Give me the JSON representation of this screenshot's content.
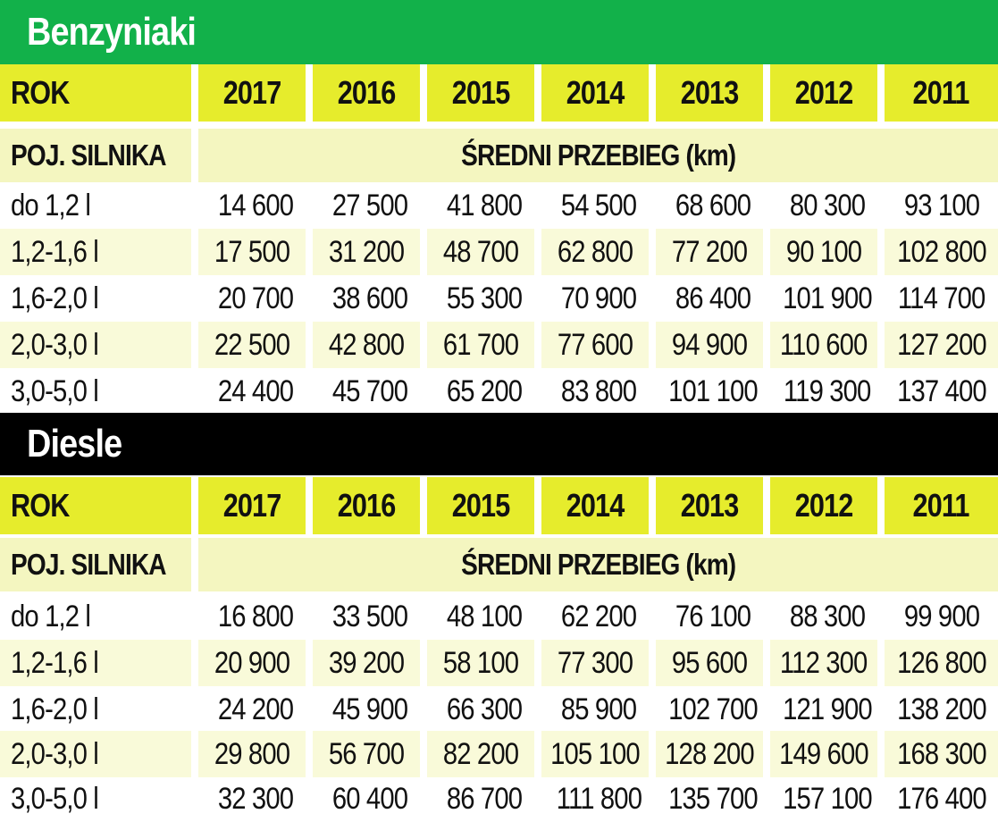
{
  "colors": {
    "petrol_header": "#12b14a",
    "diesel_header": "#000000",
    "year_row": "#e6ec2c",
    "subheader_row": "#f4f6c0",
    "alt_row": "#f9fad9"
  },
  "sections": [
    {
      "title": "Benzyniaki",
      "year_label": "ROK",
      "years": [
        "2017",
        "2016",
        "2015",
        "2014",
        "2013",
        "2012",
        "2011"
      ],
      "engine_label": "POJ. SILNIKA",
      "mileage_label": "ŚREDNI PRZEBIEG (km)",
      "rows": [
        {
          "engine": "do 1,2 l",
          "values": [
            "14 600",
            "27 500",
            "41 800",
            "54 500",
            "68 600",
            "80 300",
            "93 100"
          ]
        },
        {
          "engine": "1,2-1,6 l",
          "values": [
            "17 500",
            "31 200",
            "48 700",
            "62 800",
            "77 200",
            "90 100",
            "102 800"
          ]
        },
        {
          "engine": "1,6-2,0 l",
          "values": [
            "20 700",
            "38 600",
            "55 300",
            "70 900",
            "86 400",
            "101 900",
            "114 700"
          ]
        },
        {
          "engine": "2,0-3,0 l",
          "values": [
            "22 500",
            "42 800",
            "61 700",
            "77 600",
            "94 900",
            "110 600",
            "127 200"
          ]
        },
        {
          "engine": "3,0-5,0 l",
          "values": [
            "24 400",
            "45 700",
            "65 200",
            "83 800",
            "101 100",
            "119 300",
            "137 400"
          ]
        }
      ]
    },
    {
      "title": "Diesle",
      "year_label": "ROK",
      "years": [
        "2017",
        "2016",
        "2015",
        "2014",
        "2013",
        "2012",
        "2011"
      ],
      "engine_label": "POJ. SILNIKA",
      "mileage_label": "ŚREDNI PRZEBIEG (km)",
      "rows": [
        {
          "engine": "do 1,2 l",
          "values": [
            "16 800",
            "33 500",
            "48 100",
            "62 200",
            "76 100",
            "88 300",
            "99 900"
          ]
        },
        {
          "engine": "1,2-1,6 l",
          "values": [
            "20 900",
            "39 200",
            "58 100",
            "77 300",
            "95 600",
            "112 300",
            "126 800"
          ]
        },
        {
          "engine": "1,6-2,0 l",
          "values": [
            "24 200",
            "45 900",
            "66 300",
            "85 900",
            "102 700",
            "121 900",
            "138 200"
          ]
        },
        {
          "engine": "2,0-3,0 l",
          "values": [
            "29 800",
            "56 700",
            "82 200",
            "105 100",
            "128 200",
            "149 600",
            "168 300"
          ]
        },
        {
          "engine": "3,0-5,0 l",
          "values": [
            "32 300",
            "60 400",
            "86 700",
            "111 800",
            "135 700",
            "157 100",
            "176 400"
          ]
        }
      ]
    }
  ]
}
